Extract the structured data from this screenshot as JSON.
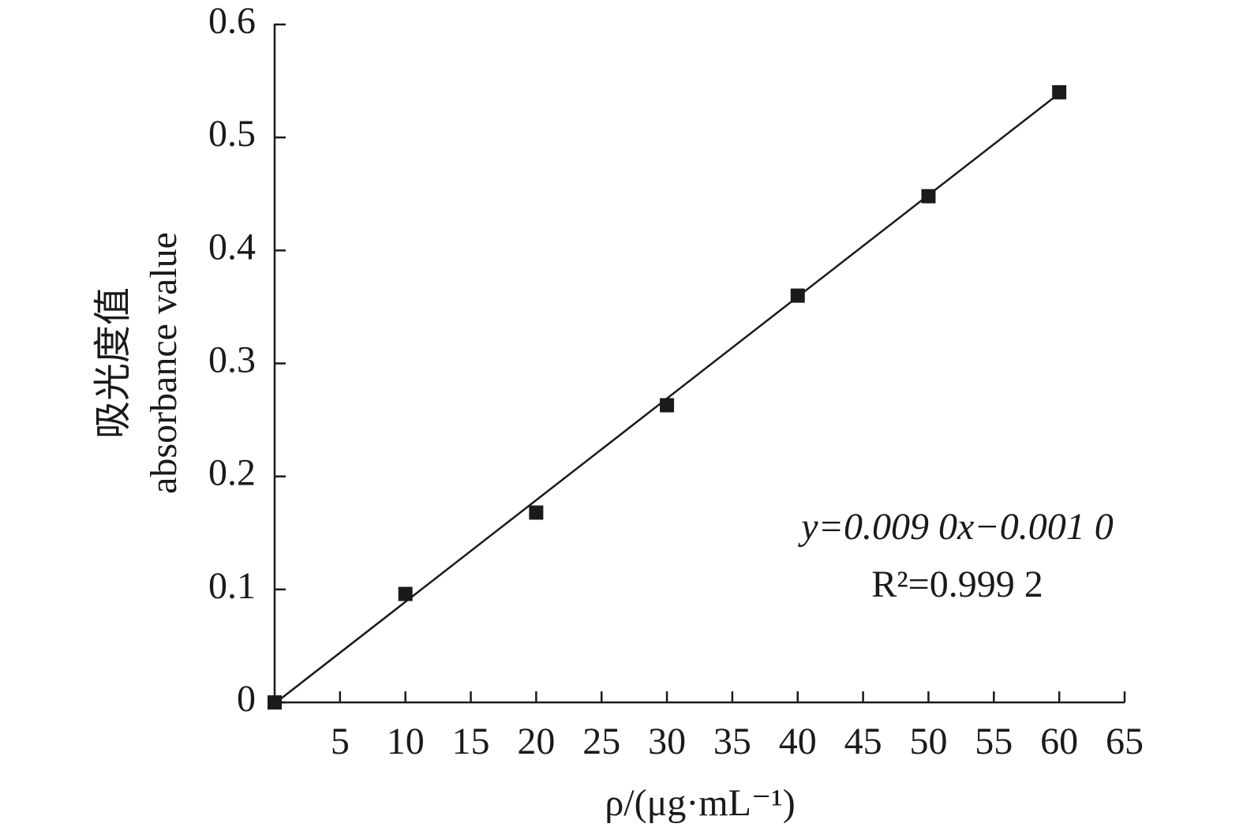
{
  "chart_data": {
    "type": "scatter",
    "x_label": "ρ/(μg·mL⁻¹)",
    "y_label": [
      "吸光度值",
      "absorbance value"
    ],
    "annotations": [
      "y=0.009 0x−0.001 0",
      "R²=0.999 2"
    ],
    "x": [
      0,
      10,
      20,
      30,
      40,
      50,
      60
    ],
    "values": [
      0,
      0.096,
      0.168,
      0.263,
      0.36,
      0.448,
      0.54
    ],
    "color": "#1a1a1a",
    "trendline": {
      "x": [
        0,
        60
      ],
      "values": [
        -0.001,
        0.539
      ]
    },
    "xlim": [
      0,
      65
    ],
    "xticks": [
      5,
      10,
      15,
      20,
      25,
      30,
      35,
      40,
      45,
      50,
      55,
      60,
      65
    ],
    "ylim": [
      0,
      0.6
    ],
    "yticks": [
      0,
      0.1,
      0.2,
      0.3,
      0.4,
      0.5,
      0.6
    ]
  }
}
